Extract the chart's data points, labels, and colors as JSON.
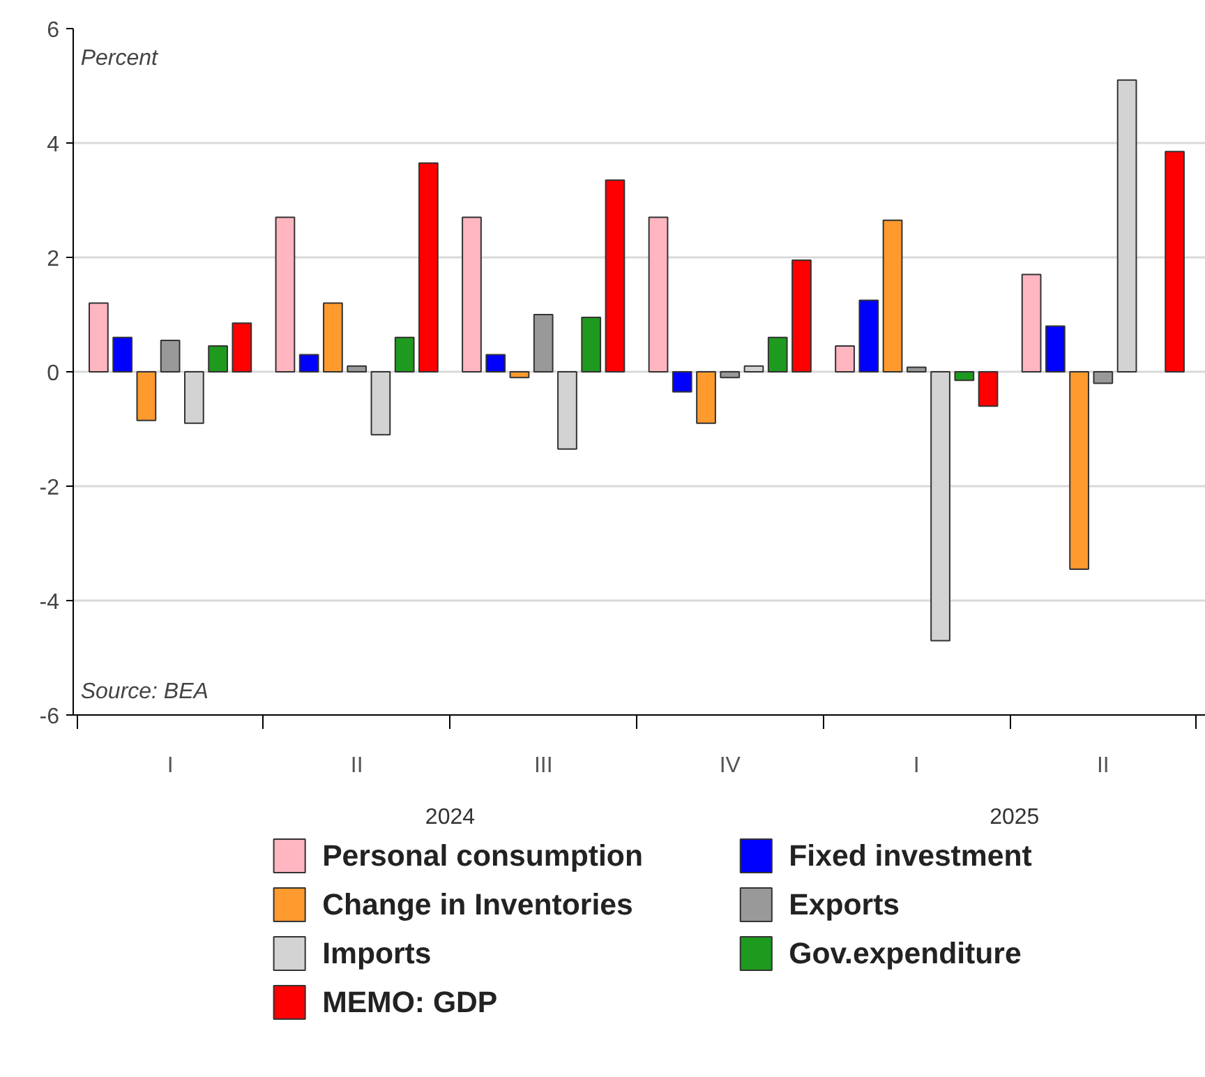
{
  "chart_data": {
    "type": "bar",
    "ylabel": "Percent",
    "categories": [
      "I",
      "II",
      "III",
      "IV",
      "I",
      "II"
    ],
    "series": [
      {
        "name": "Personal consumption",
        "color": "#ffb6c1",
        "values": [
          1.2,
          2.7,
          2.7,
          2.7,
          0.45,
          1.7
        ]
      },
      {
        "name": "Fixed investment",
        "color": "#0000ff",
        "values": [
          0.6,
          0.3,
          0.3,
          -0.35,
          1.25,
          0.8
        ]
      },
      {
        "name": "Change in Inventories",
        "color": "#ff9a2e",
        "values": [
          -0.85,
          1.2,
          -0.1,
          -0.9,
          2.65,
          -3.45
        ]
      },
      {
        "name": "Exports",
        "color": "#999999",
        "values": [
          0.55,
          0.1,
          1.0,
          -0.1,
          0.08,
          -0.2
        ]
      },
      {
        "name": "Imports",
        "color": "#d3d3d3",
        "values": [
          -0.9,
          -1.1,
          -1.35,
          0.1,
          -4.7,
          5.1
        ]
      },
      {
        "name": "Gov.expenditure",
        "color": "#1e9a1e",
        "values": [
          0.45,
          0.6,
          0.95,
          0.6,
          -0.15,
          null
        ]
      },
      {
        "name": "MEMO: GDP",
        "color": "#ff0000",
        "values": [
          0.85,
          3.65,
          3.35,
          1.95,
          -0.6,
          3.85
        ]
      }
    ],
    "ylim": [
      -6,
      6
    ],
    "yticks": [
      -6,
      -4,
      -2,
      0,
      2,
      4,
      6
    ],
    "grid": "y",
    "legend": "bottom",
    "annotations": [
      "Source: BEA",
      "2024",
      "2025"
    ]
  }
}
